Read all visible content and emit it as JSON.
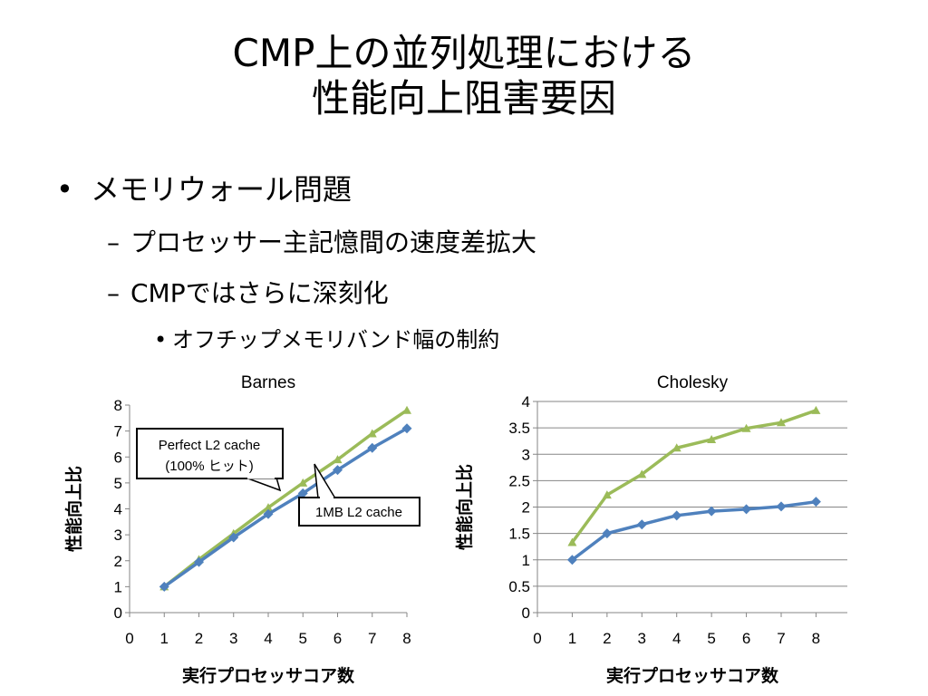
{
  "slide": {
    "title_line1": "CMP上の並列処理における",
    "title_line2": "性能向上阻害要因",
    "bullet1": "メモリウォール問題",
    "sub1": "プロセッサー主記憶間の速度差拡大",
    "sub2": "CMPではさらに深刻化",
    "subsub1": "オフチップメモリバンド幅の制約",
    "marker_bullet": "•",
    "marker_dash": "–"
  },
  "callouts": {
    "perfect_line1": "Perfect L2 cache",
    "perfect_line2": "(100% ヒット)",
    "onemb": "1MB L2 cache"
  },
  "chart_data": [
    {
      "type": "line",
      "title": "Barnes",
      "xlabel": "実行プロセッサコア数",
      "ylabel": "性能向上比",
      "x": [
        1,
        2,
        3,
        4,
        5,
        6,
        7,
        8
      ],
      "xlim": [
        0,
        8
      ],
      "ylim": [
        0,
        8
      ],
      "xticks": [
        0,
        1,
        2,
        3,
        4,
        5,
        6,
        7,
        8
      ],
      "yticks": [
        0,
        1,
        2,
        3,
        4,
        5,
        6,
        7,
        8
      ],
      "ytick_labels": [
        "0",
        "1",
        "2",
        "3",
        "4",
        "5",
        "6",
        "7",
        "8"
      ],
      "grid": false,
      "series": [
        {
          "key": "perfect",
          "values": [
            1.0,
            2.05,
            3.05,
            4.05,
            5.0,
            5.9,
            6.9,
            7.8
          ],
          "color": "#9BBB59",
          "marker": "triangle"
        },
        {
          "key": "onemb",
          "values": [
            1.0,
            1.95,
            2.9,
            3.8,
            4.6,
            5.5,
            6.35,
            7.1
          ],
          "color": "#4F81BD",
          "marker": "diamond"
        }
      ]
    },
    {
      "type": "line",
      "title": "Cholesky",
      "xlabel": "実行プロセッサコア数",
      "ylabel": "性能向上比",
      "x": [
        1,
        2,
        3,
        4,
        5,
        6,
        7,
        8
      ],
      "xlim": [
        0,
        8.9
      ],
      "ylim": [
        0,
        4
      ],
      "xticks": [
        0,
        1,
        2,
        3,
        4,
        5,
        6,
        7,
        8
      ],
      "yticks": [
        0,
        0.5,
        1,
        1.5,
        2,
        2.5,
        3,
        3.5,
        4
      ],
      "ytick_labels": [
        "0",
        "0.5",
        "1",
        "1.5",
        "2",
        "2.5",
        "3",
        "3.5",
        "4"
      ],
      "grid": true,
      "series": [
        {
          "key": "perfect",
          "values": [
            1.33,
            2.23,
            2.62,
            3.12,
            3.28,
            3.49,
            3.6,
            3.83
          ],
          "color": "#9BBB59",
          "marker": "triangle"
        },
        {
          "key": "onemb",
          "values": [
            1.0,
            1.5,
            1.67,
            1.84,
            1.92,
            1.96,
            2.01,
            2.1
          ],
          "color": "#4F81BD",
          "marker": "diamond"
        }
      ]
    }
  ]
}
